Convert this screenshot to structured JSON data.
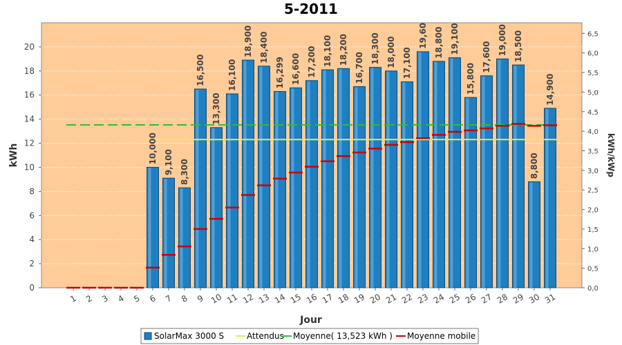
{
  "chart_data": {
    "type": "bar",
    "title": "5-2011",
    "xlabel": "Jour",
    "ylabel": "kWh",
    "ylabel_right": "kWh/kWp",
    "ylim": [
      0,
      22
    ],
    "ylim_right": [
      0,
      6.77
    ],
    "yticks": [
      0,
      2,
      4,
      6,
      8,
      10,
      12,
      14,
      16,
      18,
      20
    ],
    "yticks_right": [
      "0,0",
      "0,5",
      "1,0",
      "1,5",
      "2,0",
      "2,5",
      "3,0",
      "3,5",
      "4,0",
      "4,5",
      "5,0",
      "5,5",
      "6,0",
      "6,5"
    ],
    "categories": [
      "1",
      "2",
      "3",
      "4",
      "5",
      "6",
      "7",
      "8",
      "9",
      "10",
      "11",
      "12",
      "13",
      "14",
      "15",
      "16",
      "17",
      "18",
      "19",
      "20",
      "21",
      "22",
      "23",
      "24",
      "25",
      "26",
      "27",
      "28",
      "29",
      "30",
      "31"
    ],
    "series": [
      {
        "name": "SolarMax 3000 S",
        "type": "bar",
        "color": "#1f7fc0",
        "values": [
          0,
          0,
          0,
          0,
          0,
          10.0,
          9.1,
          8.3,
          16.5,
          13.3,
          16.1,
          18.9,
          18.4,
          16.299,
          16.6,
          17.2,
          18.1,
          18.2,
          16.7,
          18.3,
          18.0,
          17.1,
          19.6,
          18.8,
          19.1,
          15.8,
          17.6,
          19.0,
          18.5,
          8.8,
          14.9
        ],
        "labels": [
          "",
          "",
          "",
          "",
          "",
          "10,000",
          "9,100",
          "8,300",
          "16,500",
          "13,300",
          "16,100",
          "18,900",
          "18,400",
          "16,299",
          "16,600",
          "17,200",
          "18,100",
          "18,200",
          "16,700",
          "18,300",
          "18,000",
          "17,100",
          "19,60",
          "18,800",
          "19,100",
          "15,800",
          "17,600",
          "19,000",
          "18,500",
          "8,800",
          "14,900"
        ]
      },
      {
        "name": "Attendus",
        "type": "line",
        "color": "#e8e860",
        "values": [
          null,
          null,
          null,
          null,
          null,
          12.3,
          12.3,
          12.3,
          12.3,
          12.3,
          12.3,
          12.3,
          12.3,
          12.3,
          12.3,
          12.3,
          12.3,
          12.3,
          12.3,
          12.3,
          12.3,
          12.3,
          12.3,
          12.3,
          12.3,
          12.3,
          12.3,
          12.3,
          12.3,
          12.3,
          12.3
        ]
      },
      {
        "name": "Moyenne( 13,523 kWh )",
        "type": "line",
        "color": "#33bb33",
        "values": [
          13.523,
          13.523,
          13.523,
          13.523,
          13.523,
          13.523,
          13.523,
          13.523,
          13.523,
          13.523,
          13.523,
          13.523,
          13.523,
          13.523,
          13.523,
          13.523,
          13.523,
          13.523,
          13.523,
          13.523,
          13.523,
          13.523,
          13.523,
          13.523,
          13.523,
          13.523,
          13.523,
          13.523,
          13.523,
          13.523,
          13.523
        ]
      },
      {
        "name": "Moyenne mobile",
        "type": "step",
        "color": "#cc0000",
        "values": [
          0,
          0,
          0,
          0,
          0,
          1.67,
          2.73,
          3.43,
          4.88,
          5.72,
          6.66,
          7.7,
          8.5,
          9.06,
          9.56,
          10.05,
          10.5,
          10.93,
          11.23,
          11.55,
          11.86,
          12.09,
          12.42,
          12.69,
          12.95,
          13.06,
          13.23,
          13.44,
          13.6,
          13.44,
          13.49
        ]
      }
    ],
    "grid": true,
    "legend_position": "bottom"
  },
  "colors": {
    "plot_background": "#ffcc99",
    "bar_fill": "#1f7fc0",
    "bar_edge": "#0d4a78",
    "label": "#444444"
  }
}
